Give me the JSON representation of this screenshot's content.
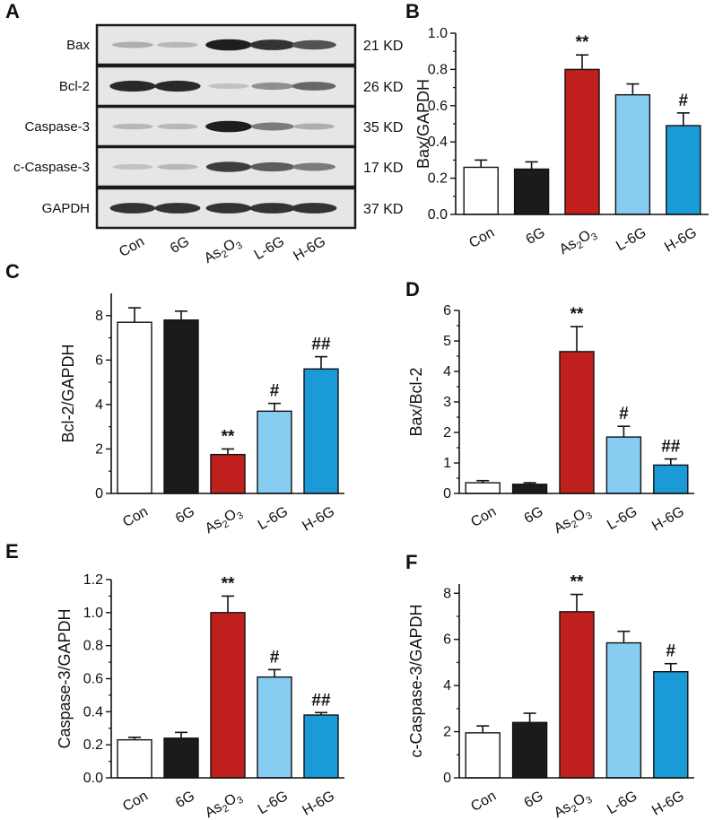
{
  "panel_letters": [
    "A",
    "B",
    "C",
    "D",
    "E",
    "F"
  ],
  "colors": {
    "Con": "#ffffff",
    "6G": "#1b1b1b",
    "As2O3": "#c0201e",
    "L-6G": "#86cdf1",
    "H-6G": "#1a9ad6"
  },
  "blot": {
    "bands": [
      {
        "name": "Bax",
        "kd": "21 KD",
        "intensity": [
          0.25,
          0.2,
          0.95,
          0.85,
          0.7
        ]
      },
      {
        "name": "Bcl-2",
        "kd": "26 KD",
        "intensity": [
          0.9,
          0.9,
          0.15,
          0.4,
          0.6
        ]
      },
      {
        "name": "Caspase-3",
        "kd": "35 KD",
        "intensity": [
          0.2,
          0.2,
          0.95,
          0.5,
          0.25
        ]
      },
      {
        "name": "c-Caspase-3",
        "kd": "17 KD",
        "intensity": [
          0.15,
          0.2,
          0.8,
          0.65,
          0.5
        ]
      },
      {
        "name": "GAPDH",
        "kd": "37 KD",
        "intensity": [
          0.85,
          0.85,
          0.85,
          0.85,
          0.85
        ]
      }
    ],
    "lanes": [
      "Con",
      "6G",
      "As2O3",
      "L-6G",
      "H-6G"
    ]
  },
  "chart_data": [
    {
      "panel": "B",
      "type": "bar",
      "categories": [
        "Con",
        "6G",
        "As2O3",
        "L-6G",
        "H-6G"
      ],
      "values": [
        0.26,
        0.25,
        0.8,
        0.66,
        0.49
      ],
      "errors": [
        0.04,
        0.04,
        0.08,
        0.06,
        0.07
      ],
      "significance": [
        "",
        "",
        "**",
        "",
        "#"
      ],
      "ylabel": "Bax/GAPDH",
      "ylim": [
        0,
        1.0
      ],
      "yticks": [
        "0.0",
        "0.2",
        "0.4",
        "0.6",
        "0.8",
        "1.0"
      ]
    },
    {
      "panel": "C",
      "type": "bar",
      "categories": [
        "Con",
        "6G",
        "As2O3",
        "L-6G",
        "H-6G"
      ],
      "values": [
        7.7,
        7.8,
        1.75,
        3.7,
        5.6
      ],
      "errors": [
        0.65,
        0.4,
        0.25,
        0.35,
        0.55
      ],
      "significance": [
        "",
        "",
        "**",
        "#",
        "##"
      ],
      "ylabel": "Bcl-2/GAPDH",
      "ylim": [
        0,
        9
      ],
      "yticks": [
        "0",
        "2",
        "4",
        "6",
        "8"
      ]
    },
    {
      "panel": "D",
      "type": "bar",
      "categories": [
        "Con",
        "6G",
        "As2O3",
        "L-6G",
        "H-6G"
      ],
      "values": [
        0.35,
        0.3,
        4.65,
        1.85,
        0.93
      ],
      "errors": [
        0.07,
        0.05,
        0.82,
        0.35,
        0.2
      ],
      "significance": [
        "",
        "",
        "**",
        "#",
        "##"
      ],
      "ylabel": "Bax/Bcl-2",
      "ylim": [
        0,
        6
      ],
      "yticks": [
        "0",
        "1",
        "2",
        "3",
        "4",
        "5",
        "6"
      ]
    },
    {
      "panel": "E",
      "type": "bar",
      "categories": [
        "Con",
        "6G",
        "As2O3",
        "L-6G",
        "H-6G"
      ],
      "values": [
        0.23,
        0.24,
        1.0,
        0.61,
        0.38
      ],
      "errors": [
        0.015,
        0.035,
        0.1,
        0.045,
        0.015
      ],
      "significance": [
        "",
        "",
        "**",
        "#",
        "##"
      ],
      "ylabel": "Caspase-3/GAPDH",
      "ylim": [
        0,
        1.2
      ],
      "yticks": [
        "0.0",
        "0.2",
        "0.4",
        "0.6",
        "0.8",
        "1.0",
        "1.2"
      ]
    },
    {
      "panel": "F",
      "type": "bar",
      "categories": [
        "Con",
        "6G",
        "As2O3",
        "L-6G",
        "H-6G"
      ],
      "values": [
        1.95,
        2.4,
        7.2,
        5.85,
        4.6
      ],
      "errors": [
        0.3,
        0.4,
        0.75,
        0.5,
        0.35
      ],
      "significance": [
        "",
        "",
        "**",
        "",
        "#"
      ],
      "ylabel": "c-Caspase-3/GAPDH",
      "ylim": [
        0,
        8.4
      ],
      "yticks": [
        "0",
        "2",
        "4",
        "6",
        "8"
      ]
    }
  ]
}
